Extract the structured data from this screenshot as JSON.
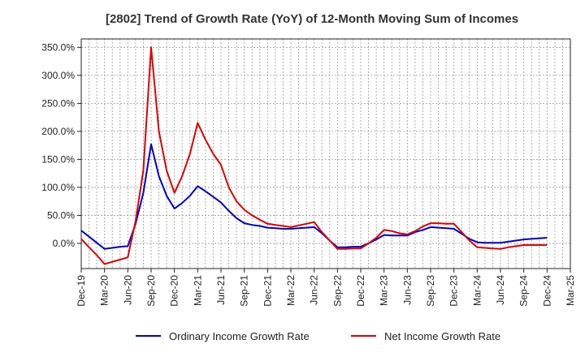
{
  "chart_data": {
    "type": "line",
    "title": "[2802]  Trend of Growth Rate (YoY) of 12-Month Moving Sum of Incomes",
    "xlabel": "",
    "ylabel": "",
    "x_ticks": [
      "Dec-19",
      "Mar-20",
      "Jun-20",
      "Sep-20",
      "Dec-20",
      "Mar-21",
      "Jun-21",
      "Sep-21",
      "Dec-21",
      "Mar-22",
      "Jun-22",
      "Sep-22",
      "Dec-22",
      "Mar-23",
      "Jun-23",
      "Sep-23",
      "Dec-23",
      "Mar-24",
      "Jun-24",
      "Sep-24",
      "Dec-24",
      "Mar-25"
    ],
    "y_ticks": [
      "350.0%",
      "300.0%",
      "250.0%",
      "200.0%",
      "150.0%",
      "100.0%",
      "50.0%",
      "0.0%"
    ],
    "ylim": [
      -45,
      365
    ],
    "grid": true,
    "legend_position": "bottom",
    "x": [
      "Dec-19",
      "Jan-20",
      "Feb-20",
      "Mar-20",
      "Apr-20",
      "May-20",
      "Jun-20",
      "Jul-20",
      "Aug-20",
      "Sep-20",
      "Oct-20",
      "Nov-20",
      "Dec-20",
      "Jan-21",
      "Feb-21",
      "Mar-21",
      "Apr-21",
      "May-21",
      "Jun-21",
      "Jul-21",
      "Aug-21",
      "Sep-21",
      "Oct-21",
      "Nov-21",
      "Dec-21",
      "Jan-22",
      "Feb-22",
      "Mar-22",
      "Apr-22",
      "May-22",
      "Jun-22",
      "Jul-22",
      "Aug-22",
      "Sep-22",
      "Oct-22",
      "Nov-22",
      "Dec-22",
      "Jan-23",
      "Feb-23",
      "Mar-23",
      "Apr-23",
      "May-23",
      "Jun-23",
      "Jul-23",
      "Aug-23",
      "Sep-23",
      "Oct-23",
      "Nov-23",
      "Dec-23",
      "Jan-24",
      "Feb-24",
      "Mar-24",
      "Apr-24",
      "May-24",
      "Jun-24",
      "Jul-24",
      "Aug-24",
      "Sep-24",
      "Oct-24",
      "Nov-24",
      "Dec-24"
    ],
    "series": [
      {
        "name": "Ordinary Income Growth Rate",
        "color": "#0000cc",
        "values": [
          23,
          12,
          1,
          -10,
          -8,
          -6,
          -5,
          35,
          90,
          177,
          120,
          85,
          62,
          72,
          85,
          102,
          93,
          83,
          73,
          58,
          45,
          36,
          33,
          31,
          28,
          27,
          26,
          26,
          27,
          28,
          29,
          18,
          5,
          -7,
          -7,
          -6,
          -6,
          0,
          7,
          15,
          14,
          14,
          14,
          20,
          24,
          29,
          28,
          27,
          26,
          17,
          8,
          2,
          1,
          1,
          1,
          3,
          5,
          7,
          8,
          9,
          10
        ],
        "marker": "none"
      },
      {
        "name": "Net Income Growth Rate",
        "color": "#dd0000",
        "values": [
          8,
          -7,
          -21,
          -37,
          -33,
          -29,
          -25,
          40,
          130,
          350,
          200,
          130,
          90,
          120,
          160,
          215,
          185,
          160,
          140,
          100,
          75,
          60,
          50,
          42,
          35,
          33,
          31,
          29,
          32,
          35,
          38,
          20,
          5,
          -10,
          -10,
          -9,
          -9,
          0,
          10,
          24,
          22,
          18,
          16,
          22,
          30,
          36,
          36,
          35,
          35,
          20,
          5,
          -7,
          -8,
          -9,
          -10,
          -7,
          -5,
          -3,
          -3,
          -3,
          -3
        ],
        "marker": "none"
      }
    ]
  }
}
